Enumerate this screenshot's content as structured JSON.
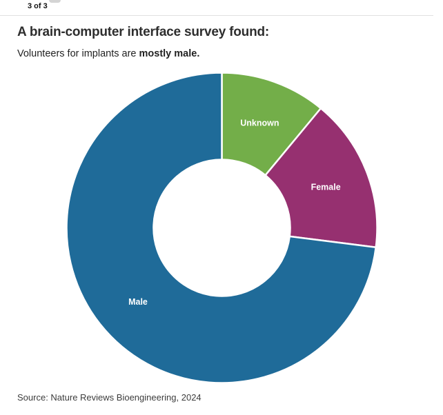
{
  "page": {
    "pagination": "3 of 3",
    "title": "A brain-computer interface survey found:",
    "subtitle_regular": "Volunteers for implants are ",
    "subtitle_bold": "mostly male.",
    "source": "Source: Nature Reviews Bioengineering, 2024"
  },
  "chart_data": {
    "type": "pie",
    "subtype": "donut",
    "title": "A brain-computer interface survey found:",
    "subtitle": "Volunteers for implants are mostly male.",
    "source": "Source: Nature Reviews Bioengineering, 2024",
    "categories": [
      "Unknown",
      "Female",
      "Male"
    ],
    "values": [
      11,
      16,
      73
    ],
    "unit": "percent",
    "colors": [
      "#73ae49",
      "#963070",
      "#1f6b99"
    ],
    "label_color": "#ffffff",
    "labels_inside": true,
    "legend": "none",
    "start_angle_deg": 0,
    "direction": "clockwise",
    "inner_radius_ratio": 0.44,
    "slice_gap_color": "#ffffff"
  }
}
